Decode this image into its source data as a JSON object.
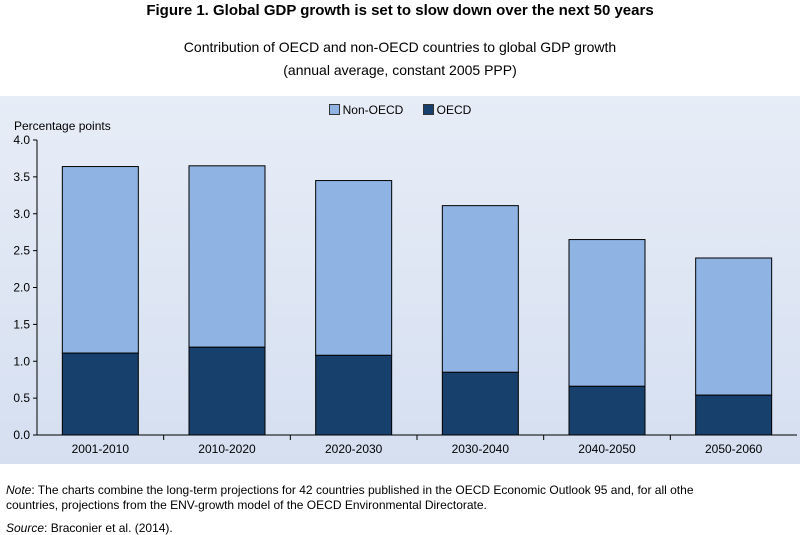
{
  "figure": {
    "title": "Figure 1.  Global GDP growth is set to slow down over the next 50 years",
    "subtitle_line1": "Contribution of OECD and non-OECD countries to global GDP growth",
    "subtitle_line2": "(annual average, constant 2005 PPP)"
  },
  "colors": {
    "non_oecd": "#8fb4e3",
    "oecd": "#17406d",
    "axis": "#000000"
  },
  "chart_data": {
    "type": "bar",
    "stacked": true,
    "title": "Contribution of OECD and non-OECD countries to global GDP growth (annual average, constant 2005 PPP)",
    "ylabel": "Percentage points",
    "xlabel": "",
    "ylim": [
      0,
      4.0
    ],
    "yticks": [
      "0.0",
      "0.5",
      "1.0",
      "1.5",
      "2.0",
      "2.5",
      "3.0",
      "3.5",
      "4.0"
    ],
    "legend": [
      "Non-OECD",
      "OECD"
    ],
    "legend_position": "top-center",
    "categories": [
      "2001-2010",
      "2010-2020",
      "2020-2030",
      "2030-2040",
      "2040-2050",
      "2050-2060"
    ],
    "series": [
      {
        "name": "OECD",
        "values": [
          1.11,
          1.19,
          1.08,
          0.85,
          0.66,
          0.54
        ]
      },
      {
        "name": "Non-OECD",
        "values": [
          2.53,
          2.46,
          2.37,
          2.26,
          1.99,
          1.86
        ]
      }
    ]
  },
  "note": {
    "label": "Note",
    "line1": ": The charts combine the long-term projections for 42 countries published in the OECD Economic Outlook 95 and, for all othe",
    "line2": "countries, projections from the ENV-growth model of the OECD Environmental Directorate."
  },
  "source": {
    "label": "Source",
    "text": ": Braconier et al. (2014)."
  }
}
